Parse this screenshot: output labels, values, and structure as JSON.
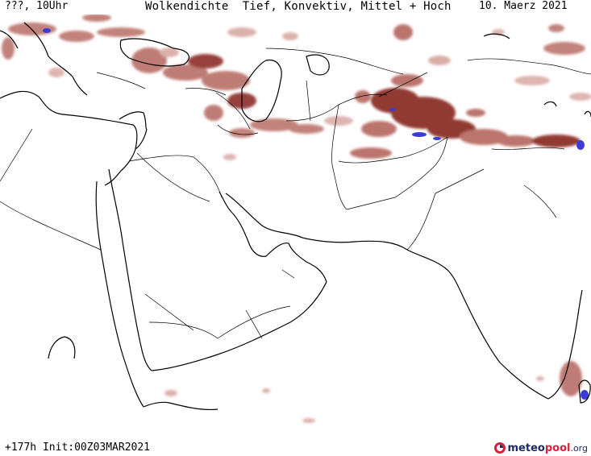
{
  "header": {
    "run_label": "???, 10Uhr",
    "title": "Wolkendichte  Tief, Konvektiv, Mittel + Hoch",
    "valid_date": "10. Maerz 2021"
  },
  "footer": {
    "forecast_info": "+177h Init:00Z03MAR2021",
    "logo_part1": "meteo",
    "logo_part2": "pool",
    "logo_part3": ".org"
  },
  "map": {
    "colors": {
      "background": "#ffffff",
      "coastline": "#000000",
      "border": "#000000",
      "cloud_light": "#d9a9a3",
      "cloud_mid": "#b86e66",
      "cloud_dense": "#8c2f2a",
      "cloud_peak": "#3b3bd6"
    }
  }
}
